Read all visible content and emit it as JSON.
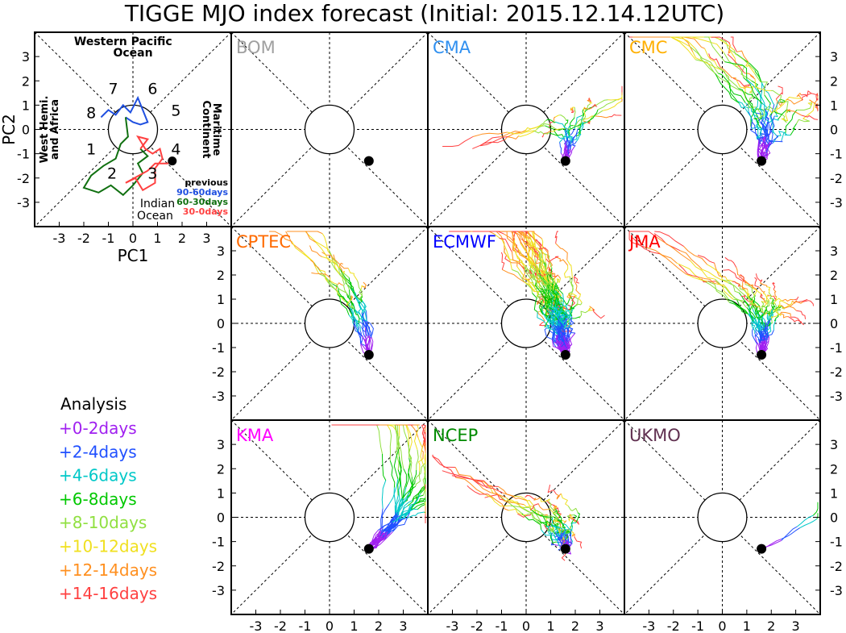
{
  "title": "TIGGE MJO index forecast (Initial: 2015.12.14.12UTC)",
  "colors": {
    "analysis": "#000000",
    "d0_2": "#a020f0",
    "d2_4": "#2050ff",
    "d4_6": "#00c8c8",
    "d6_8": "#00c800",
    "d8_10": "#90e040",
    "d10_12": "#f0e020",
    "d12_14": "#ff9020",
    "d14_16": "#ff4040",
    "prev_90_60": "#2050e0",
    "prev_60_30": "#107010",
    "prev_30_0": "#ff4040"
  },
  "analysis_panel": {
    "xlabel": "PC1",
    "ylabel": "PC2",
    "regions": {
      "top": "Western Pacific Ocean",
      "bottom": "Indian Ocean",
      "left": "West Hemi. and Africa",
      "right": "Maritime Continent"
    },
    "phases": [
      "1",
      "2",
      "3",
      "4",
      "5",
      "6",
      "7",
      "8"
    ],
    "previous_legend": {
      "heading": "previous",
      "items": [
        "90-60days",
        "60-30days",
        "30-0days"
      ]
    }
  },
  "legend": {
    "heading": "Analysis",
    "items": [
      "+0-2days",
      "+2-4days",
      "+4-6days",
      "+6-8days",
      "+8-10days",
      "+10-12days",
      "+12-14days",
      "+14-16days"
    ]
  },
  "axes": {
    "ticks": [
      "-3",
      "-2",
      "-1",
      "0",
      "1",
      "2",
      "3"
    ],
    "xlim": [
      -4,
      4
    ],
    "ylim": [
      -4,
      4
    ]
  },
  "chart_data": {
    "type": "scatter",
    "title": "TIGGE MJO index forecast (Initial: 2015.12.14.12UTC)",
    "xlabel": "PC1",
    "ylabel": "PC2",
    "xlim": [
      -4,
      4
    ],
    "ylim": [
      -4,
      4
    ],
    "initial_state": {
      "pc1": 1.6,
      "pc2": -1.3
    },
    "analysis_trajectory": {
      "previous_90_60days": [
        [
          -1.3,
          0.5
        ],
        [
          -1.0,
          0.8
        ],
        [
          -0.7,
          0.6
        ],
        [
          -0.4,
          1.0
        ],
        [
          -0.1,
          0.7
        ],
        [
          0.2,
          1.3
        ],
        [
          0.4,
          0.8
        ],
        [
          0.6,
          0.3
        ],
        [
          0.3,
          0.2
        ],
        [
          0.0,
          0.3
        ],
        [
          -0.3,
          0.5
        ]
      ],
      "previous_60_30days": [
        [
          -0.3,
          0.5
        ],
        [
          -0.2,
          -0.3
        ],
        [
          -0.5,
          -0.6
        ],
        [
          -0.7,
          -1.2
        ],
        [
          -1.2,
          -1.5
        ],
        [
          -1.7,
          -1.9
        ],
        [
          -2.0,
          -2.4
        ],
        [
          -1.4,
          -2.6
        ],
        [
          -0.9,
          -2.3
        ],
        [
          -0.4,
          -2.7
        ],
        [
          0.0,
          -2.3
        ],
        [
          0.4,
          -1.8
        ],
        [
          0.2,
          -1.4
        ],
        [
          0.6,
          -1.1
        ],
        [
          0.3,
          -0.8
        ]
      ],
      "previous_30_0days": [
        [
          0.3,
          -0.8
        ],
        [
          0.6,
          -0.4
        ],
        [
          0.2,
          -0.3
        ],
        [
          0.5,
          -0.8
        ],
        [
          0.8,
          -1.0
        ],
        [
          1.1,
          -0.8
        ],
        [
          1.2,
          -1.2
        ],
        [
          0.9,
          -1.6
        ],
        [
          0.9,
          -2.2
        ],
        [
          0.4,
          -2.5
        ],
        [
          0.1,
          -2.0
        ],
        [
          -0.3,
          -2.2
        ],
        [
          0.6,
          -1.7
        ],
        [
          0.9,
          -1.4
        ],
        [
          1.4,
          -1.4
        ],
        [
          1.6,
          -1.3
        ]
      ]
    },
    "panels": [
      {
        "name": "BOM",
        "color": "#a0a0a0",
        "members": 0
      },
      {
        "name": "CMA",
        "color": "#3090f0",
        "members": 14
      },
      {
        "name": "CMC",
        "color": "#ffb000",
        "members": 20
      },
      {
        "name": "CPTEC",
        "color": "#ff6a00",
        "members": 14
      },
      {
        "name": "ECMWF",
        "color": "#0000ff",
        "members": 50
      },
      {
        "name": "JMA",
        "color": "#ff0000",
        "members": 26
      },
      {
        "name": "KMA",
        "color": "#ff00ff",
        "members": 24
      },
      {
        "name": "NCEP",
        "color": "#008a00",
        "members": 20
      },
      {
        "name": "UKMO",
        "color": "#603050",
        "members": 2
      }
    ]
  }
}
